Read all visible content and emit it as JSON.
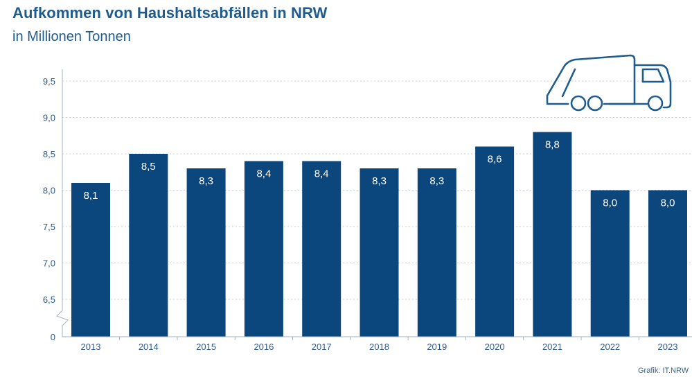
{
  "title": "Aufkommen von Haushaltsabfällen in NRW",
  "subtitle": "in Millionen Tonnen",
  "source": "Grafik: IT.NRW",
  "colors": {
    "bar": "#0b467c",
    "text": "#1f5c8e",
    "grid": "#c9d1da",
    "axis": "#a6b4c3"
  },
  "icon": "garbage-truck-icon",
  "chart_data": {
    "type": "bar",
    "categories": [
      "2013",
      "2014",
      "2015",
      "2016",
      "2017",
      "2018",
      "2019",
      "2020",
      "2021",
      "2022",
      "2023"
    ],
    "values": [
      8.1,
      8.5,
      8.3,
      8.4,
      8.4,
      8.3,
      8.3,
      8.6,
      8.8,
      8.0,
      8.0
    ],
    "value_labels": [
      "8,1",
      "8,5",
      "8,3",
      "8,4",
      "8,4",
      "8,3",
      "8,3",
      "8,6",
      "8,8",
      "8,0",
      "8,0"
    ],
    "yticks": [
      {
        "value": 0,
        "label": "0"
      },
      {
        "value": 6.5,
        "label": "6,5"
      },
      {
        "value": 7.0,
        "label": "7,0"
      },
      {
        "value": 7.5,
        "label": "7,5"
      },
      {
        "value": 8.0,
        "label": "8,0"
      },
      {
        "value": 8.5,
        "label": "8,5"
      },
      {
        "value": 9.0,
        "label": "9,0"
      },
      {
        "value": 9.5,
        "label": "9,5"
      }
    ],
    "ylim": [
      6.0,
      9.5
    ],
    "axis_break": true,
    "grid": true,
    "xlabel": "",
    "ylabel": ""
  }
}
